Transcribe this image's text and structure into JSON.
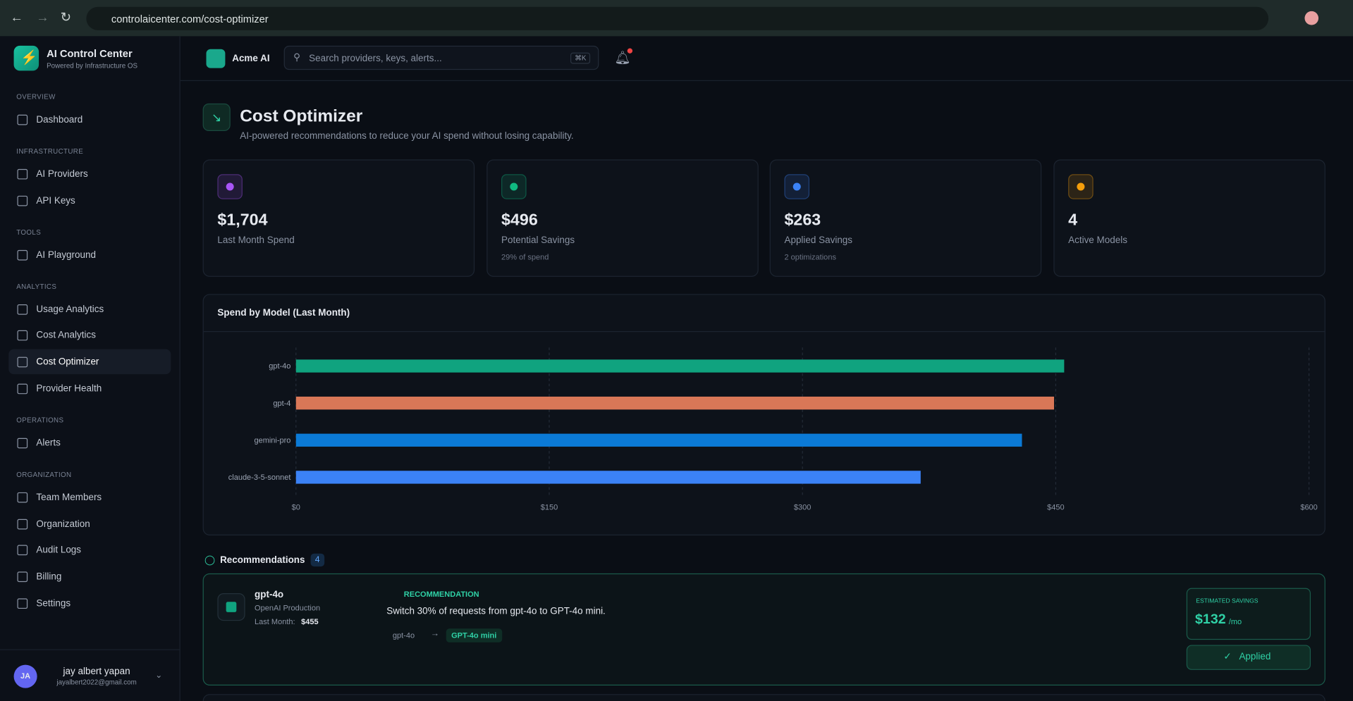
{
  "browser": {
    "url": "controlaicenter.com/cost-optimizer"
  },
  "sidebar": {
    "brand": "AI Control Center",
    "tagline": "Powered by Infrastructure OS",
    "active": "Cost Optimizer",
    "sections": [
      {
        "title": "OVERVIEW",
        "items": [
          "Dashboard"
        ]
      },
      {
        "title": "INFRASTRUCTURE",
        "items": [
          "AI Providers",
          "API Keys"
        ]
      },
      {
        "title": "TOOLS",
        "items": [
          "AI Playground"
        ]
      },
      {
        "title": "ANALYTICS",
        "items": [
          "Usage Analytics",
          "Cost Analytics",
          "Cost Optimizer",
          "Provider Health"
        ]
      },
      {
        "title": "OPERATIONS",
        "items": [
          "Alerts"
        ]
      },
      {
        "title": "ORGANIZATION",
        "items": [
          "Team Members",
          "Organization",
          "Audit Logs",
          "Billing",
          "Settings"
        ]
      }
    ],
    "user": {
      "initials": "JA",
      "name": "jay albert yapan",
      "email": "jayalbert2022@gmail.com"
    }
  },
  "header": {
    "org": "Acme AI",
    "search": "Search providers, keys, alerts...",
    "shortcut": "⌘K"
  },
  "page": {
    "title": "Cost Optimizer",
    "subtitle": "AI-powered recommendations to reduce your AI spend without losing capability."
  },
  "stats": [
    {
      "value": "$1,704",
      "label": "Last Month Spend",
      "color": "#a855f7"
    },
    {
      "value": "$496",
      "label": "Potential Savings",
      "note": "29% of spend",
      "color": "#10b981"
    },
    {
      "value": "$263",
      "label": "Applied Savings",
      "note": "2 optimizations",
      "color": "#3b82f6"
    },
    {
      "value": "4",
      "label": "Active Models",
      "color": "#f59e0b"
    }
  ],
  "chart_data": {
    "type": "bar",
    "orientation": "horizontal",
    "title": "Spend by Model (Last Month)",
    "categories": [
      "gpt-4o",
      "gpt-4",
      "gemini-pro",
      "claude-3-5-sonnet"
    ],
    "values": [
      455,
      449,
      430,
      370
    ],
    "colors": [
      "#10a37f",
      "#d97757",
      "#0b7ad6",
      "#3b82f6"
    ],
    "xlim": [
      0,
      600
    ],
    "xticks": [
      {
        "value": 0,
        "label": "$0"
      },
      {
        "value": 150,
        "label": "$150"
      },
      {
        "value": 300,
        "label": "$300"
      },
      {
        "value": 450,
        "label": "$450"
      },
      {
        "value": 600,
        "label": "$600"
      }
    ],
    "grid": true
  },
  "recommendations": {
    "title": "Recommendations",
    "count": 4,
    "items": [
      {
        "model": "gpt-4o",
        "provider": "OpenAI Production",
        "spend_label": "Last Month:",
        "spend": "$455",
        "tag": "RECOMMENDATION",
        "text": "Switch 30% of requests from gpt-4o to GPT-4o mini.",
        "from": "gpt-4o",
        "to": "GPT-4o mini",
        "savings_label": "ESTIMATED SAVINGS",
        "savings": "$132",
        "per": "/mo",
        "status": "Applied"
      }
    ]
  }
}
